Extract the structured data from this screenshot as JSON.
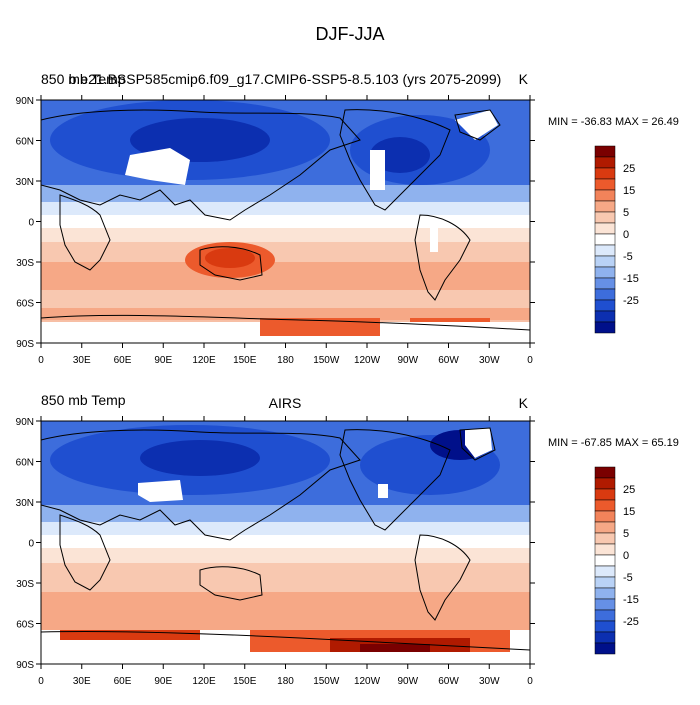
{
  "page": {
    "title": "DJF-JJA"
  },
  "panels": [
    {
      "left_title": "850 mb Temp",
      "center_title": "b.e21.BSSP585cmip6.f09_g17.CMIP6-SSP5-8.5.103 (yrs 2075-2099)",
      "units": "K",
      "min_label": "MIN = -36.83",
      "max_label": "MAX =  26.49"
    },
    {
      "left_title": "850 mb Temp",
      "center_title": "AIRS",
      "units": "K",
      "min_label": "MIN = -67.85",
      "max_label": "MAX =  65.19"
    }
  ],
  "axes": {
    "lat_ticks": [
      "90N",
      "60N",
      "30N",
      "0",
      "30S",
      "60S",
      "90S"
    ],
    "lon_ticks": [
      "0",
      "30E",
      "60E",
      "90E",
      "120E",
      "150E",
      "180",
      "150W",
      "120W",
      "90W",
      "60W",
      "30W",
      "0"
    ]
  },
  "colorbar": {
    "labels": [
      "25",
      "15",
      "5",
      "0",
      "-5",
      "-15",
      "-25"
    ],
    "colors": [
      "#7a0000",
      "#b01a00",
      "#d93a10",
      "#ec5a2c",
      "#f2835a",
      "#f6a886",
      "#f8c8b0",
      "#fbe4d6",
      "#ffffff",
      "#dce9fb",
      "#b9d2f6",
      "#8fb2ee",
      "#6690e6",
      "#3d6ddc",
      "#1f4fd0",
      "#0c2fb0",
      "#00108a"
    ]
  }
}
